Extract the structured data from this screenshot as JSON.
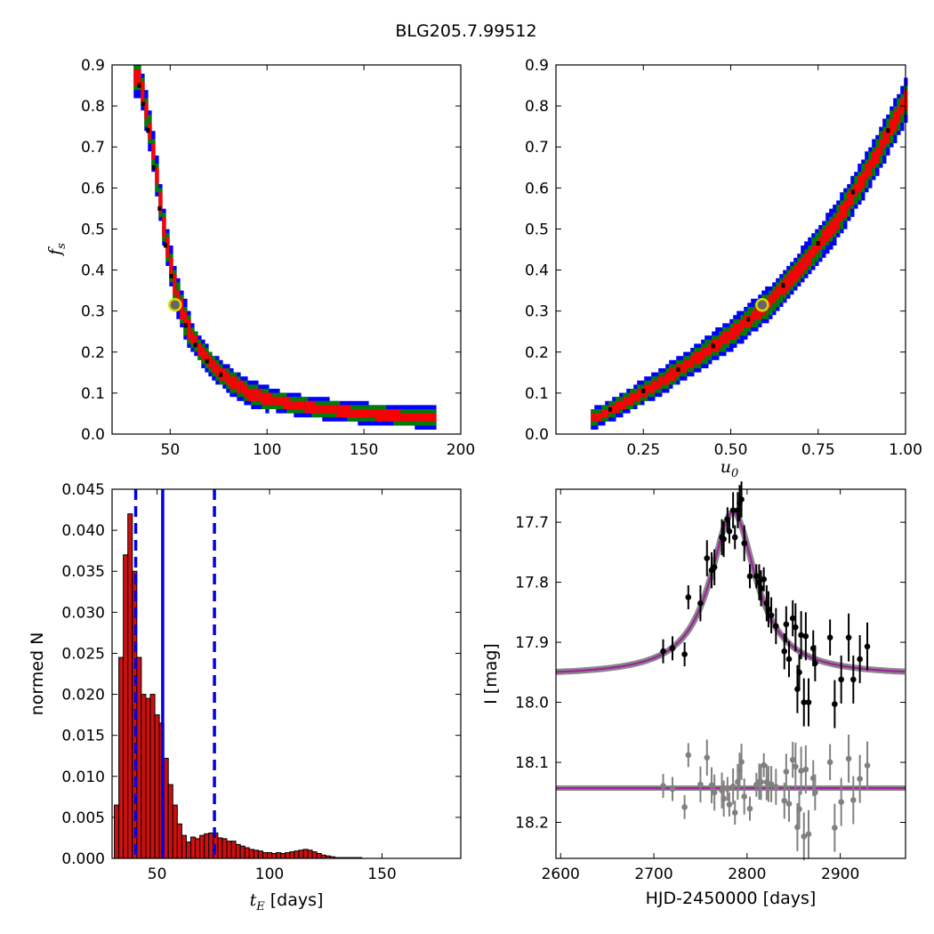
{
  "figure": {
    "title": "BLG205.7.99512"
  },
  "colors": {
    "sigma3": "#0000ff",
    "sigma2": "#008000",
    "sigma1": "#ff0000",
    "best_cell": "#000000",
    "marker_edge": "#d8d800",
    "marker_face": "#666666",
    "hist_bar": "#cc1010",
    "vline": "#0000e0",
    "model": "#a020a0",
    "model_band": "#888888",
    "data_point": "#000000",
    "residual_point": "#808080"
  },
  "chart_data": [
    {
      "id": "tE-vs-fs",
      "type": "heatmap",
      "xlabel": "",
      "ylabel": "f_s",
      "ylabel_parts": {
        "main": "f",
        "sub": "s"
      },
      "xlim": [
        20,
        200
      ],
      "ylim": [
        0.0,
        0.9
      ],
      "xticks": [
        "50",
        "100",
        "150",
        "200"
      ],
      "yticks": [
        "0.0",
        "0.1",
        "0.2",
        "0.3",
        "0.4",
        "0.5",
        "0.6",
        "0.7",
        "0.8",
        "0.9"
      ],
      "levels": [
        "1-sigma",
        "2-sigma",
        "3-sigma"
      ],
      "ridge": [
        [
          33,
          0.87
        ],
        [
          35,
          0.83
        ],
        [
          37,
          0.78
        ],
        [
          40,
          0.7
        ],
        [
          43,
          0.6
        ],
        [
          46,
          0.5
        ],
        [
          49,
          0.42
        ],
        [
          52,
          0.35
        ],
        [
          56,
          0.29
        ],
        [
          60,
          0.24
        ],
        [
          66,
          0.195
        ],
        [
          72,
          0.16
        ],
        [
          80,
          0.13
        ],
        [
          90,
          0.1
        ],
        [
          100,
          0.085
        ],
        [
          115,
          0.07
        ],
        [
          130,
          0.06
        ],
        [
          150,
          0.05
        ],
        [
          170,
          0.043
        ],
        [
          185,
          0.04
        ]
      ],
      "best_fit": {
        "x": 52.5,
        "y": 0.315
      }
    },
    {
      "id": "u0-vs-fs",
      "type": "heatmap",
      "xlabel": "u_0",
      "xlabel_parts": {
        "main": "u",
        "sub": "0"
      },
      "ylabel": "",
      "xlim": [
        0.0,
        1.0
      ],
      "ylim": [
        0.0,
        0.9
      ],
      "xticks": [
        "0.25",
        "0.50",
        "0.75",
        "1.00"
      ],
      "yticks": [
        "0.0",
        "0.1",
        "0.2",
        "0.3",
        "0.4",
        "0.5",
        "0.6",
        "0.7",
        "0.8",
        "0.9"
      ],
      "levels": [
        "1-sigma",
        "2-sigma",
        "3-sigma"
      ],
      "ridge": [
        [
          0.11,
          0.04
        ],
        [
          0.2,
          0.08
        ],
        [
          0.3,
          0.13
        ],
        [
          0.4,
          0.185
        ],
        [
          0.5,
          0.245
        ],
        [
          0.6,
          0.315
        ],
        [
          0.7,
          0.41
        ],
        [
          0.8,
          0.52
        ],
        [
          0.9,
          0.66
        ],
        [
          1.0,
          0.82
        ]
      ],
      "best_fit": {
        "x": 0.59,
        "y": 0.315
      }
    },
    {
      "id": "tE-histogram",
      "type": "bar",
      "xlabel": "[days]",
      "xlabel_parts": {
        "main": "t",
        "sub": "E",
        "suffix": " [days]"
      },
      "ylabel": "normed N",
      "xlim": [
        30,
        185
      ],
      "ylim": [
        0.0,
        0.045
      ],
      "xticks": [
        "50",
        "100",
        "150"
      ],
      "yticks": [
        "0.000",
        "0.005",
        "0.010",
        "0.015",
        "0.020",
        "0.025",
        "0.030",
        "0.035",
        "0.040",
        "0.045"
      ],
      "bin_start": 31,
      "bin_width": 2,
      "values": [
        0.0065,
        0.0245,
        0.037,
        0.042,
        0.035,
        0.0245,
        0.02,
        0.0195,
        0.02,
        0.0175,
        0.0165,
        0.0122,
        0.009,
        0.0065,
        0.0042,
        0.0028,
        0.002,
        0.0026,
        0.0024,
        0.0028,
        0.003,
        0.0031,
        0.0031,
        0.0025,
        0.0024,
        0.0021,
        0.0021,
        0.0017,
        0.0015,
        0.0013,
        0.0011,
        0.001,
        0.0009,
        0.0007,
        0.0007,
        0.0006,
        0.0007,
        0.0006,
        0.0007,
        0.0008,
        0.0009,
        0.001,
        0.0011,
        0.001,
        0.0008,
        0.0006,
        0.0004,
        0.0003,
        0.0002,
        0.0001,
        0.0001,
        0.0001,
        0.0001,
        0.0001,
        0.0001
      ],
      "vlines": [
        {
          "x": 52.5,
          "style": "solid"
        },
        {
          "x": 40.5,
          "style": "dashed"
        },
        {
          "x": 75.5,
          "style": "dashed"
        }
      ]
    },
    {
      "id": "light-curve",
      "type": "scatter",
      "xlabel": "HJD-2450000 [days]",
      "ylabel": "I [mag]",
      "xlim": [
        2595,
        2970
      ],
      "ylim": [
        18.26,
        17.645
      ],
      "y_inverted": true,
      "xticks": [
        "2600",
        "2700",
        "2800",
        "2900"
      ],
      "yticks": [
        "17.7",
        "17.8",
        "17.9",
        "18.0",
        "18.1",
        "18.2"
      ],
      "model": {
        "t0": 2785,
        "baseline": 17.956,
        "peak": 17.683,
        "width": 40
      },
      "residual_baseline": 18.143,
      "points": [
        [
          2710,
          17.915,
          0.02
        ],
        [
          2720,
          17.91,
          0.02
        ],
        [
          2733,
          17.92,
          0.02
        ],
        [
          2737,
          17.825,
          0.02
        ],
        [
          2750,
          17.835,
          0.03
        ],
        [
          2757,
          17.76,
          0.03
        ],
        [
          2762,
          17.78,
          0.03
        ],
        [
          2765,
          17.775,
          0.03
        ],
        [
          2773,
          17.725,
          0.03
        ],
        [
          2775,
          17.728,
          0.03
        ],
        [
          2779,
          17.695,
          0.02
        ],
        [
          2781,
          17.715,
          0.02
        ],
        [
          2785,
          17.68,
          0.03
        ],
        [
          2787,
          17.725,
          0.02
        ],
        [
          2790,
          17.68,
          0.03
        ],
        [
          2792,
          17.668,
          0.03
        ],
        [
          2794,
          17.662,
          0.03
        ],
        [
          2797,
          17.735,
          0.03
        ],
        [
          2803,
          17.79,
          0.02
        ],
        [
          2810,
          17.79,
          0.02
        ],
        [
          2813,
          17.8,
          0.03
        ],
        [
          2815,
          17.81,
          0.03
        ],
        [
          2818,
          17.795,
          0.02
        ],
        [
          2821,
          17.835,
          0.03
        ],
        [
          2823,
          17.845,
          0.03
        ],
        [
          2826,
          17.855,
          0.03
        ],
        [
          2831,
          17.873,
          0.03
        ],
        [
          2840,
          17.915,
          0.03
        ],
        [
          2842,
          17.87,
          0.03
        ],
        [
          2845,
          17.928,
          0.03
        ],
        [
          2849,
          17.86,
          0.03
        ],
        [
          2852,
          17.875,
          0.04
        ],
        [
          2854,
          17.978,
          0.04
        ],
        [
          2856,
          17.95,
          0.03
        ],
        [
          2858,
          17.888,
          0.04
        ],
        [
          2861,
          18.0,
          0.04
        ],
        [
          2863,
          17.89,
          0.04
        ],
        [
          2866,
          18.0,
          0.04
        ],
        [
          2871,
          17.91,
          0.03
        ],
        [
          2873,
          17.935,
          0.03
        ],
        [
          2889,
          17.892,
          0.03
        ],
        [
          2894,
          18.003,
          0.04
        ],
        [
          2901,
          17.962,
          0.04
        ],
        [
          2909,
          17.892,
          0.04
        ],
        [
          2914,
          17.962,
          0.04
        ],
        [
          2921,
          17.928,
          0.04
        ],
        [
          2929,
          17.907,
          0.04
        ]
      ]
    }
  ]
}
